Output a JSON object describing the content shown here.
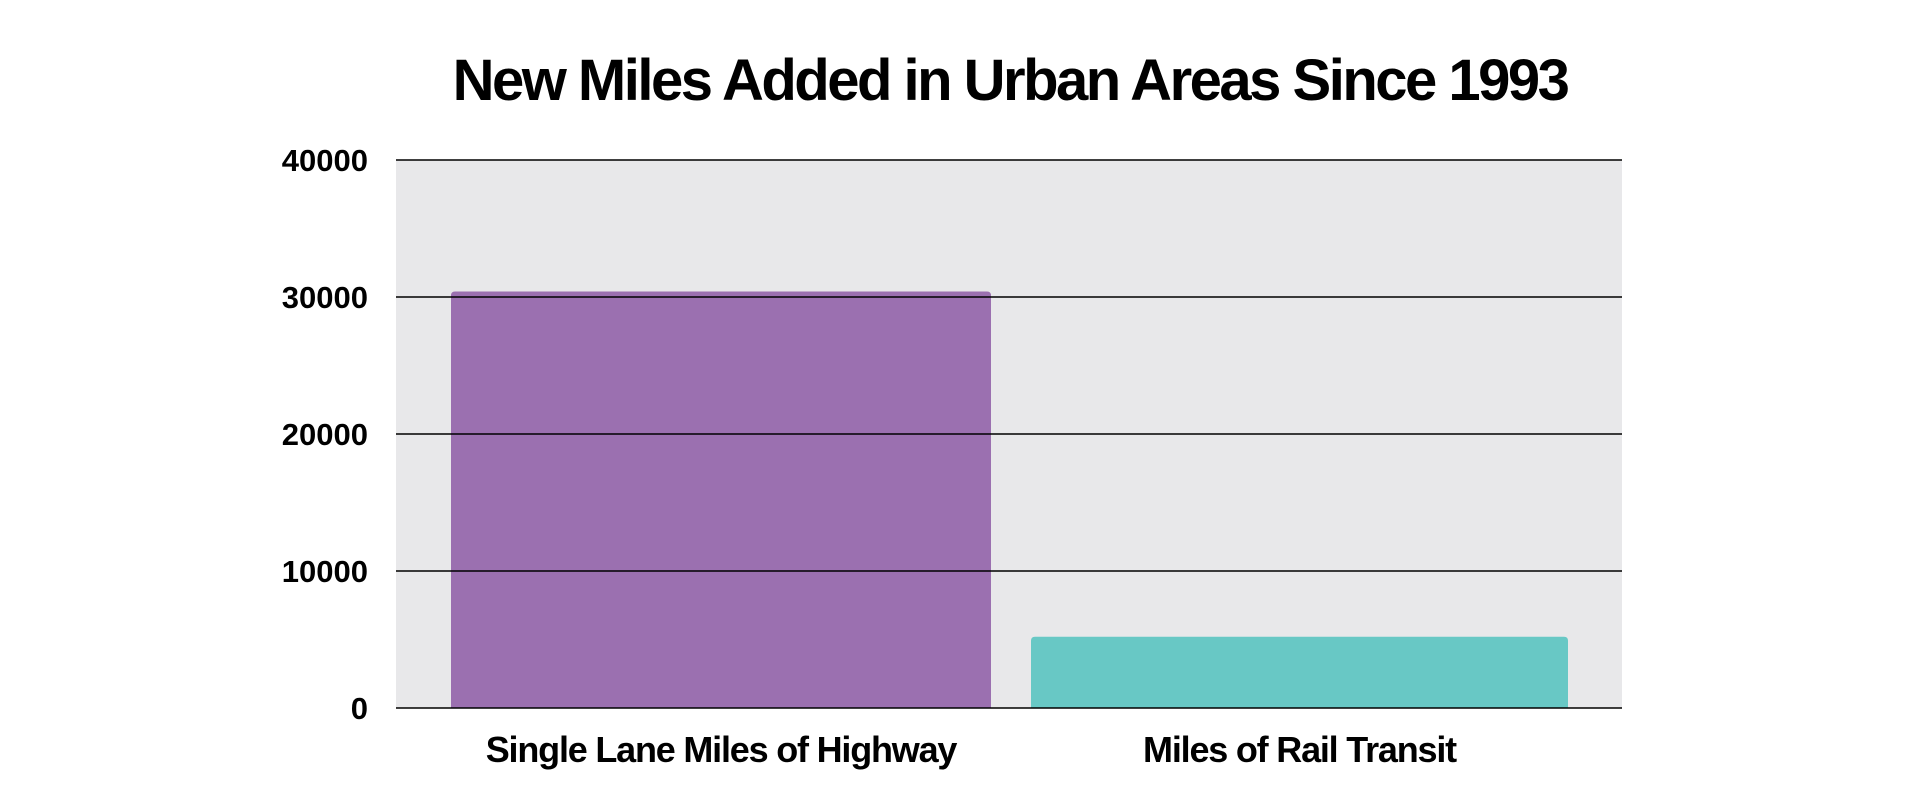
{
  "chart_data": {
    "type": "bar",
    "title": "New Miles Added in Urban Areas Since 1993",
    "categories": [
      "Single Lane Miles of Highway",
      "Miles of Rail Transit"
    ],
    "values": [
      30400,
      5200
    ],
    "colors": [
      "#9b70b0",
      "#68c8c5"
    ],
    "yticks": [
      "0",
      "10000",
      "20000",
      "30000",
      "40000"
    ],
    "ylim": [
      0,
      40000
    ],
    "grid": true,
    "plot_background": "#e8e8ea",
    "xlabel": "",
    "ylabel": ""
  }
}
